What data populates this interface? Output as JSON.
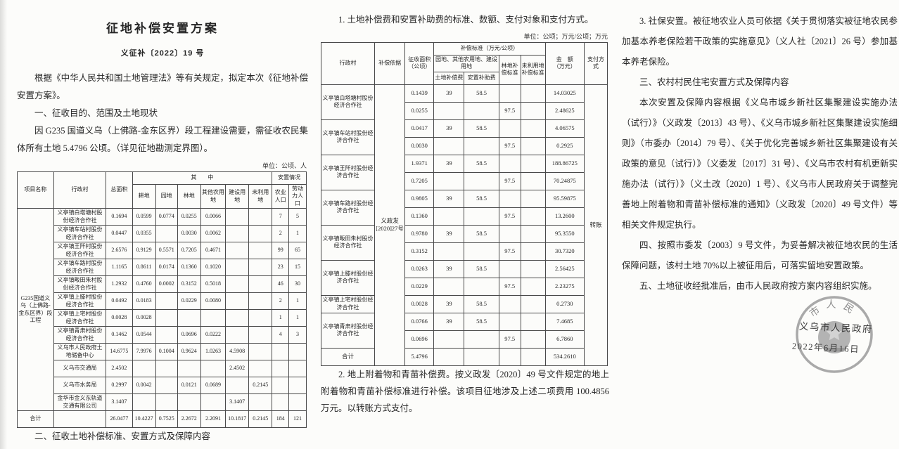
{
  "left": {
    "title": "征地补偿安置方案",
    "doc_number": "义征补〔2022〕19 号",
    "paragraphs": [
      "根据《中华人民共和国土地管理法》等有关规定，拟定本次《征地补偿安置方案》。",
      "一、征收目的、范围及土地现状",
      "因 G235 国道义乌（上佛路-金东区界）段工程建设需要，需征收农民集体所有土地 5.4796 公顷。（详见征地勘测定界图）。"
    ],
    "section2_heading": "二、征收土地补偿标准、安置方式及保障内容"
  },
  "left_table": {
    "unit_note": "单位：公顷、人",
    "header": {
      "project": "项目名称",
      "village": "行政村",
      "total_area": "总面积",
      "among_group": "其　　中",
      "among_cols": [
        "耕地",
        "园地",
        "林地",
        "其他农用地",
        "建设用地",
        "未利用地"
      ],
      "placement_group": "安置情况",
      "placement_cols": [
        "农业人口",
        "劳动力人口"
      ]
    },
    "project_name": "G235国道义乌（上佛路-金东区界）段工程",
    "rows": [
      {
        "village": "义亭镇白塔塘村股份经济合作社",
        "cells": [
          "0.1694",
          "0.0599",
          "0.0774",
          "0.0255",
          "0.0066",
          "",
          "",
          "7",
          "5"
        ]
      },
      {
        "village": "义亭镇车站村股份经济合作社",
        "cells": [
          "0.0447",
          "0.0355",
          "",
          "0.0030",
          "0.0062",
          "",
          "",
          "2",
          "1"
        ]
      },
      {
        "village": "义亭镇王阡村股份经济合作社",
        "cells": [
          "2.6576",
          "0.9129",
          "0.5571",
          "0.7205",
          "0.4671",
          "",
          "",
          "99",
          "65"
        ]
      },
      {
        "village": "义亭镇车路村股份经济合作社",
        "cells": [
          "1.1165",
          "0.8611",
          "0.0174",
          "0.1360",
          "0.1020",
          "",
          "",
          "23",
          "15"
        ]
      },
      {
        "village": "义亭镇畈田朱村股份经济合作社",
        "cells": [
          "1.2932",
          "0.4760",
          "0.0002",
          "0.3152",
          "0.5018",
          "",
          "",
          "46",
          "30"
        ]
      },
      {
        "village": "义亭镇上滕村股份经济合作社",
        "cells": [
          "0.0492",
          "0.0183",
          "",
          "0.0229",
          "0.0080",
          "",
          "",
          "2",
          "1"
        ]
      },
      {
        "village": "义亭镇上宅村股份经济合作社",
        "cells": [
          "0.0028",
          "0.0028",
          "",
          "",
          "",
          "",
          "",
          "1",
          "1"
        ]
      },
      {
        "village": "义亭镇青肃村股份经济合作社",
        "cells": [
          "0.1462",
          "0.0544",
          "",
          "0.0696",
          "0.0222",
          "",
          "",
          "4",
          "3"
        ]
      },
      {
        "village": "义乌市人民政府土地储备中心",
        "cells": [
          "14.6775",
          "7.9976",
          "0.1004",
          "0.9624",
          "1.0263",
          "4.5908",
          "",
          "",
          ""
        ]
      },
      {
        "village": "义乌市交通局",
        "cells": [
          "2.4502",
          "",
          "",
          "",
          "",
          "2.4502",
          "",
          "",
          ""
        ]
      },
      {
        "village": "义乌市水务局",
        "cells": [
          "0.2997",
          "0.0042",
          "",
          "0.0121",
          "0.0689",
          "",
          "0.2145",
          "",
          ""
        ]
      },
      {
        "village": "金华市金义东轨道交通有限公司",
        "cells": [
          "3.1407",
          "",
          "",
          "",
          "",
          "3.1407",
          "",
          "",
          ""
        ]
      }
    ],
    "total_label": "合计",
    "total_cells": [
      "26.0477",
      "10.4227",
      "0.7525",
      "2.2672",
      "2.2091",
      "10.1817",
      "0.2145",
      "184",
      "121"
    ]
  },
  "middle": {
    "paragraphs": [
      "1. 土地补偿费和安置补助费的标准、数额、支付对象和支付方式。",
      "2. 地上附着物和青苗补偿费。按义政发〔2020〕49 号文件规定的地上附着物和青苗补偿标准进行补偿。该项目征地涉及上述二项费用 100.4856 万元。以转账方式支付。"
    ]
  },
  "middle_table": {
    "unit_note": "单位：公顷；万元/公顷；万元",
    "header": {
      "village": "行政村",
      "basis": "补偿依据",
      "area": "征收面积\n（公顷）",
      "standard_group": "补偿标准（万元/公顷）",
      "subgroup": "园地、其他农用地、建设用地",
      "sub_cols": [
        "土地补偿费",
        "安置补助费"
      ],
      "forest": "林地补偿标准",
      "unused": "未利用地补偿标准",
      "amount": "金　额\n（万元）",
      "payment": "支付方式"
    },
    "basis_value": "义政发\n[2020]27号",
    "payment_value": "转账",
    "groups": [
      {
        "village": "义亭镇白塔塘村股份经济合作社",
        "rows": [
          [
            "0.1439",
            "39",
            "58.5",
            "",
            "",
            "14.03025"
          ],
          [
            "0.0255",
            "",
            "",
            "97.5",
            "",
            "2.48625"
          ]
        ]
      },
      {
        "village": "义亭镇车站村股份经济合作社",
        "rows": [
          [
            "0.0417",
            "39",
            "58.5",
            "",
            "",
            "4.06575"
          ],
          [
            "0.0030",
            "",
            "",
            "97.5",
            "",
            "0.2925"
          ]
        ]
      },
      {
        "village": "义亭镇王阡村股份经济合作社",
        "rows": [
          [
            "1.9371",
            "39",
            "58.5",
            "",
            "",
            "188.86725"
          ],
          [
            "0.7205",
            "",
            "",
            "97.5",
            "",
            "70.24875"
          ]
        ]
      },
      {
        "village": "义亭镇车路村股份经济合作社",
        "rows": [
          [
            "0.9805",
            "39",
            "58.5",
            "",
            "",
            "95.59875"
          ],
          [
            "0.1360",
            "",
            "",
            "97.5",
            "",
            "13.2600"
          ]
        ]
      },
      {
        "village": "义亭镇畈田朱村股份经济合作社",
        "rows": [
          [
            "0.9780",
            "39",
            "58.5",
            "",
            "",
            "95.3550"
          ],
          [
            "0.3152",
            "",
            "",
            "97.5",
            "",
            "30.7320"
          ]
        ]
      },
      {
        "village": "义亭镇上滕村股份经济合作社",
        "rows": [
          [
            "0.0263",
            "39",
            "58.5",
            "",
            "",
            "2.56425"
          ],
          [
            "0.0229",
            "",
            "",
            "97.5",
            "",
            "2.23275"
          ]
        ]
      },
      {
        "village": "义亭镇上宅村股份经济合作社",
        "rows": [
          [
            "0.0028",
            "39",
            "58.5",
            "",
            "",
            "0.2730"
          ]
        ]
      },
      {
        "village": "义亭镇青肃村股份经济合作社",
        "rows": [
          [
            "0.0766",
            "39",
            "58.5",
            "",
            "",
            "7.4685"
          ],
          [
            "0.0696",
            "",
            "",
            "97.5",
            "",
            "6.7860"
          ]
        ]
      }
    ],
    "total_label": "合计",
    "total_row": [
      "5.4796",
      "",
      "",
      "",
      "",
      "534.2610"
    ]
  },
  "right": {
    "paragraphs": [
      "3. 社保安置。被征地农业人员可依据《关于贯彻落实被征地农民参加基本养老保险若干政策的实施意见》（义人社〔2021〕26 号）参加基本养老保险。",
      "三、农村村民住宅安置方式及保障内容",
      "本次安置及保障内容根据《义乌市城乡新社区集聚建设实施办法（试行）》（义政发〔2013〕43 号）、《义乌市城乡新社区集聚建设实施细则》（市委办〔2014〕79 号）、《关于优化完善城乡新社区集聚建设有关政策的意见（试行）》（义委发〔2017〕31 号）、《义乌市农村有机更新实施办法（试行）》（义土改〔2020〕1 号）、《义乌市人民政府关于调整完善地上附着物和青苗补偿标准的通知》（义政发〔2020〕49 号文件）等相关文件规定执行。",
      "四、按照市委发〔2003〕9 号文件，为妥善解决被征地农民的生活保障问题，该村土地 70%以上被征用后，可落实留地安置政策。",
      "五、土地征收经批准后，由市人民政府按方案内容组织实施。"
    ],
    "seal": {
      "arc_text": "市人民",
      "authority": "义乌市人民政府",
      "date": "2022年6月16日",
      "ring_color": "#9a9a9a",
      "emblem_color": "#979797",
      "text_color": "#3b3b3b"
    }
  }
}
